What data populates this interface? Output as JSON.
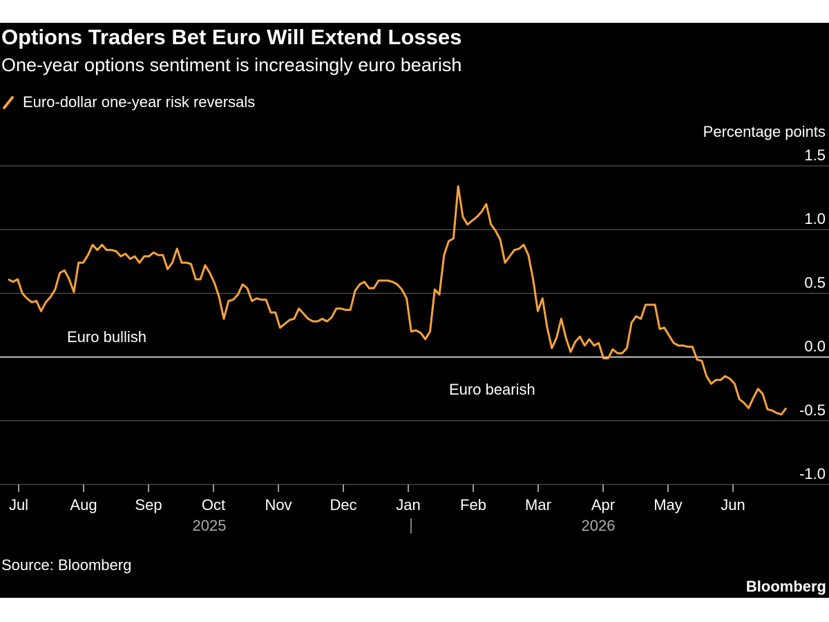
{
  "chart_data": {
    "type": "line",
    "title": "Options Traders Bet Euro Will Extend Losses",
    "subtitle": "One-year options sentiment is increasingly euro bearish",
    "y_axis_label": "Percentage points",
    "series": [
      {
        "name": "Euro-dollar one-year risk reversals",
        "color": "#f5a33b",
        "values": [
          0.61,
          0.59,
          0.61,
          0.5,
          0.46,
          0.43,
          0.44,
          0.36,
          0.43,
          0.47,
          0.53,
          0.66,
          0.68,
          0.61,
          0.51,
          0.74,
          0.74,
          0.8,
          0.88,
          0.84,
          0.88,
          0.84,
          0.84,
          0.83,
          0.79,
          0.81,
          0.77,
          0.79,
          0.74,
          0.79,
          0.79,
          0.82,
          0.8,
          0.8,
          0.69,
          0.74,
          0.85,
          0.74,
          0.74,
          0.73,
          0.61,
          0.61,
          0.72,
          0.66,
          0.58,
          0.47,
          0.3,
          0.44,
          0.45,
          0.49,
          0.57,
          0.54,
          0.44,
          0.46,
          0.45,
          0.45,
          0.35,
          0.35,
          0.23,
          0.26,
          0.29,
          0.3,
          0.38,
          0.34,
          0.3,
          0.28,
          0.28,
          0.3,
          0.28,
          0.31,
          0.38,
          0.38,
          0.37,
          0.37,
          0.52,
          0.57,
          0.59,
          0.54,
          0.54,
          0.6,
          0.6,
          0.6,
          0.59,
          0.57,
          0.53,
          0.46,
          0.2,
          0.21,
          0.19,
          0.14,
          0.2,
          0.53,
          0.49,
          0.8,
          0.91,
          0.93,
          1.34,
          1.1,
          1.04,
          1.07,
          1.1,
          1.14,
          1.2,
          1.04,
          0.99,
          0.92,
          0.74,
          0.79,
          0.84,
          0.85,
          0.88,
          0.8,
          0.61,
          0.36,
          0.46,
          0.23,
          0.07,
          0.15,
          0.3,
          0.15,
          0.04,
          0.12,
          0.16,
          0.09,
          0.14,
          0.09,
          0.11,
          -0.01,
          -0.01,
          0.06,
          0.03,
          0.03,
          0.07,
          0.27,
          0.32,
          0.3,
          0.41,
          0.41,
          0.41,
          0.22,
          0.23,
          0.17,
          0.11,
          0.09,
          0.09,
          0.08,
          0.08,
          -0.02,
          -0.03,
          -0.15,
          -0.21,
          -0.18,
          -0.18,
          -0.15,
          -0.17,
          -0.21,
          -0.33,
          -0.36,
          -0.4,
          -0.32,
          -0.25,
          -0.29,
          -0.41,
          -0.42,
          -0.44,
          -0.45,
          -0.4
        ]
      }
    ],
    "ylim": [
      -1,
      1.5
    ],
    "yticks": [
      {
        "value": -1,
        "label": "-1.0"
      },
      -0.5,
      {
        "value": 0,
        "label": "0.0"
      },
      0.5,
      {
        "value": 1,
        "label": "1.0"
      },
      1.5
    ],
    "xticks": [
      "Jul",
      "Aug",
      "Sep",
      "Oct",
      "Nov",
      "Dec",
      "Jan",
      "Feb",
      "Mar",
      "Apr",
      "May",
      "Jun"
    ],
    "year_labels": [
      "2025",
      "2026"
    ],
    "annotations": [
      "Euro bullish",
      "Euro bearish"
    ],
    "grid": true,
    "source": "Source: Bloomberg",
    "credit": "Bloomberg"
  }
}
